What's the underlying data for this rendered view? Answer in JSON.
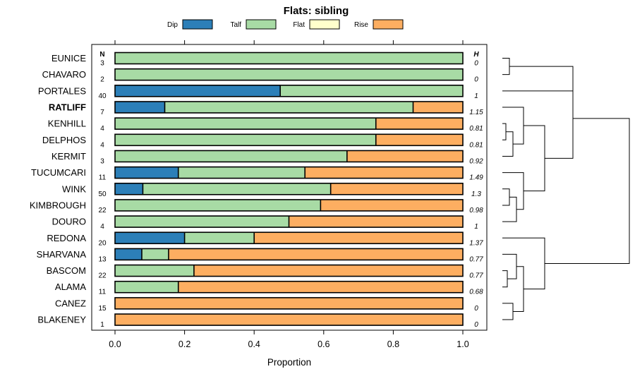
{
  "chart_data": {
    "type": "bar",
    "orientation": "horizontal",
    "stacked": true,
    "title": "Flats: sibling",
    "xlabel": "Proportion",
    "xlim": [
      0,
      1
    ],
    "xticks": [
      "0.0",
      "0.2",
      "0.4",
      "0.6",
      "0.8",
      "1.0"
    ],
    "legend_position": "top",
    "n_header": "N",
    "h_header": "H",
    "series": [
      {
        "name": "Dip",
        "color": "#2c7fb8"
      },
      {
        "name": "Talf",
        "color": "#a8dba5"
      },
      {
        "name": "Flat",
        "color": "#ffffcc"
      },
      {
        "name": "Rise",
        "color": "#fdae61"
      }
    ],
    "rows": [
      {
        "label": "EUNICE",
        "n": "3",
        "h": "0",
        "bold": false,
        "values": [
          0,
          1,
          0,
          0
        ]
      },
      {
        "label": "CHAVARO",
        "n": "2",
        "h": "0",
        "bold": false,
        "values": [
          0,
          1,
          0,
          0
        ]
      },
      {
        "label": "PORTALES",
        "n": "40",
        "h": "1",
        "bold": false,
        "values": [
          0.475,
          0.525,
          0,
          0
        ]
      },
      {
        "label": "RATLIFF",
        "n": "7",
        "h": "1.15",
        "bold": true,
        "values": [
          0.143,
          0.714,
          0,
          0.143
        ]
      },
      {
        "label": "KENHILL",
        "n": "4",
        "h": "0.81",
        "bold": false,
        "values": [
          0,
          0.75,
          0,
          0.25
        ]
      },
      {
        "label": "DELPHOS",
        "n": "4",
        "h": "0.81",
        "bold": false,
        "values": [
          0,
          0.75,
          0,
          0.25
        ]
      },
      {
        "label": "KERMIT",
        "n": "3",
        "h": "0.92",
        "bold": false,
        "values": [
          0,
          0.667,
          0,
          0.333
        ]
      },
      {
        "label": "TUCUMCARI",
        "n": "11",
        "h": "1.49",
        "bold": false,
        "values": [
          0.182,
          0.364,
          0,
          0.454
        ]
      },
      {
        "label": "WINK",
        "n": "50",
        "h": "1.3",
        "bold": false,
        "values": [
          0.08,
          0.54,
          0,
          0.38
        ]
      },
      {
        "label": "KIMBROUGH",
        "n": "22",
        "h": "0.98",
        "bold": false,
        "values": [
          0,
          0.591,
          0,
          0.409
        ]
      },
      {
        "label": "DOURO",
        "n": "4",
        "h": "1",
        "bold": false,
        "values": [
          0,
          0.5,
          0,
          0.5
        ]
      },
      {
        "label": "REDONA",
        "n": "20",
        "h": "1.37",
        "bold": false,
        "values": [
          0.2,
          0.2,
          0,
          0.6
        ]
      },
      {
        "label": "SHARVANA",
        "n": "13",
        "h": "0.77",
        "bold": false,
        "values": [
          0.077,
          0.077,
          0,
          0.846
        ]
      },
      {
        "label": "BASCOM",
        "n": "22",
        "h": "0.77",
        "bold": false,
        "values": [
          0,
          0.227,
          0,
          0.773
        ]
      },
      {
        "label": "ALAMA",
        "n": "11",
        "h": "0.68",
        "bold": false,
        "values": [
          0,
          0.182,
          0,
          0.818
        ]
      },
      {
        "label": "CANEZ",
        "n": "15",
        "h": "0",
        "bold": false,
        "values": [
          0,
          0,
          0,
          1
        ]
      },
      {
        "label": "BLAKENEY",
        "n": "1",
        "h": "0",
        "bold": false,
        "values": [
          0,
          0,
          0,
          1
        ]
      }
    ],
    "dendrogram": {
      "leaves": [
        "EUNICE",
        "CHAVARO",
        "PORTALES",
        "RATLIFF",
        "KENHILL",
        "DELPHOS",
        "KERMIT",
        "TUCUMCARI",
        "WINK",
        "KIMBROUGH",
        "DOURO",
        "REDONA",
        "SHARVANA",
        "BASCOM",
        "ALAMA",
        "CANEZ",
        "BLAKENEY"
      ],
      "merges": [
        {
          "a": 0,
          "b": 1,
          "height": 0.1
        },
        {
          "a": 17,
          "b": 2,
          "height": 1.0
        },
        {
          "a": 4,
          "b": 5,
          "height": 0.05
        },
        {
          "a": 19,
          "b": 6,
          "height": 0.15
        },
        {
          "a": 3,
          "b": 20,
          "height": 0.3
        },
        {
          "a": 8,
          "b": 9,
          "height": 0.1
        },
        {
          "a": 22,
          "b": 10,
          "height": 0.2
        },
        {
          "a": 7,
          "b": 23,
          "height": 0.3
        },
        {
          "a": 21,
          "b": 24,
          "height": 0.6
        },
        {
          "a": 18,
          "b": 25,
          "height": 1.0
        },
        {
          "a": 13,
          "b": 14,
          "height": 0.07
        },
        {
          "a": 12,
          "b": 27,
          "height": 0.2
        },
        {
          "a": 15,
          "b": 16,
          "height": 0.15
        },
        {
          "a": 28,
          "b": 29,
          "height": 0.3
        },
        {
          "a": 11,
          "b": 30,
          "height": 0.6
        },
        {
          "a": 26,
          "b": 31,
          "height": 1.8
        }
      ]
    }
  }
}
